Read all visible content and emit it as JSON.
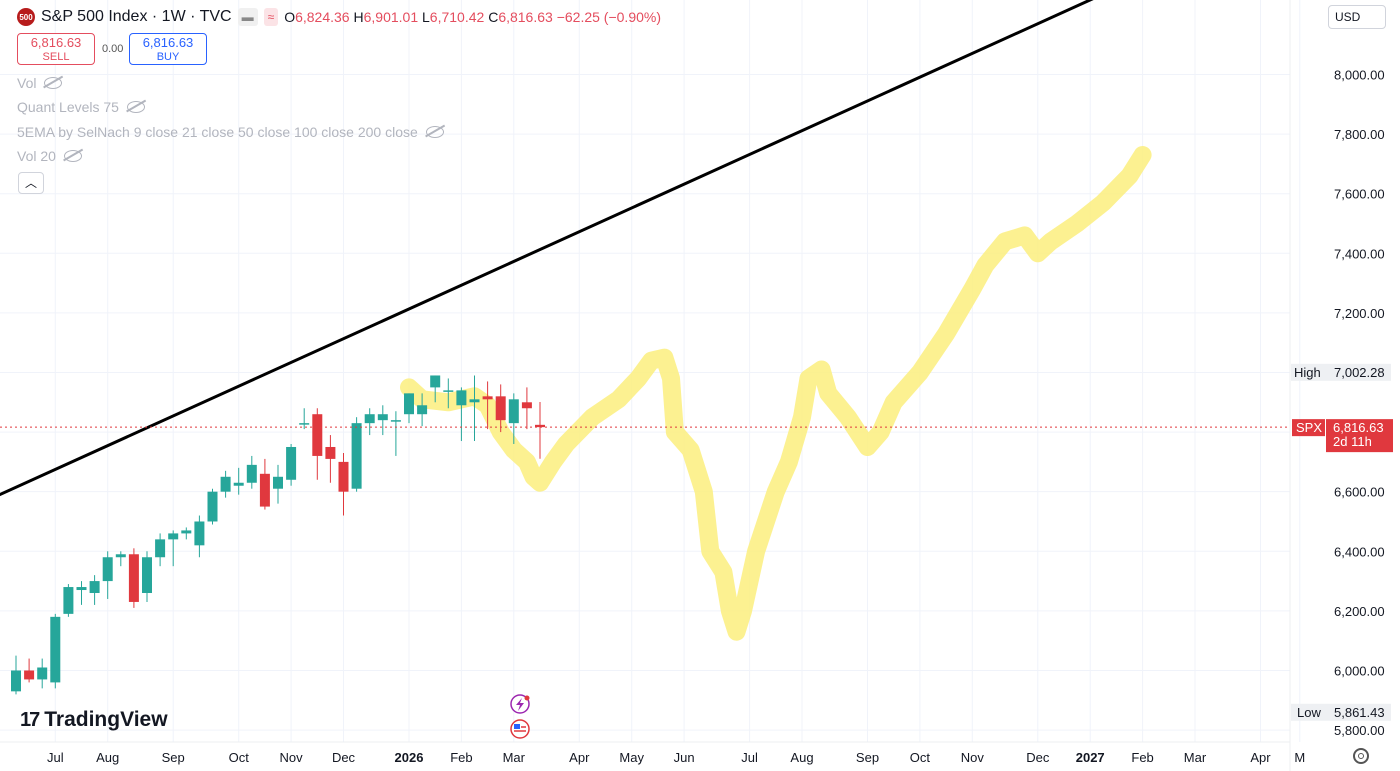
{
  "header": {
    "logo_text": "500",
    "title": "S&P 500 Index · 1W · TVC",
    "ohlc": {
      "o_label": "O",
      "o": "6,824.36",
      "h_label": "H",
      "h": "6,901.01",
      "l_label": "L",
      "l": "6,710.42",
      "c_label": "C",
      "c": "6,816.63",
      "change": "−62.25 (−0.90%)"
    }
  },
  "trade": {
    "sell_price": "6,816.63",
    "sell_label": "SELL",
    "spread": "0.00",
    "buy_price": "6,816.63",
    "buy_label": "BUY"
  },
  "indicators": [
    "Vol",
    "Quant Levels 75",
    "5EMA by SelNach 9 close 21 close 50 close 100 close 200 close",
    "Vol 20"
  ],
  "currency": "USD",
  "brand": "TradingView",
  "colors": {
    "up": "#26a69a",
    "down": "#e0383e",
    "trend_line": "#000000",
    "highlight": "#fbee7e",
    "price_label": "#e0383e"
  },
  "chart_data": {
    "type": "candlestick",
    "interval": "1W",
    "y_axis": {
      "range": [
        5760,
        8250
      ],
      "ticks": [
        5800,
        6000,
        6200,
        6400,
        6600,
        6800,
        7000,
        7200,
        7400,
        7600,
        7800,
        8000
      ],
      "tick_labels": [
        "5,800.00",
        "6,000.00",
        "6,200.00",
        "6,400.00",
        "6,600.00",
        "6,800.00",
        "7,000.00",
        "7,200.00",
        "7,400.00",
        "7,600.00",
        "7,800.00",
        "8,000.00"
      ],
      "position": "right"
    },
    "x_axis": {
      "labels": [
        "Jun",
        "Jul",
        "Aug",
        "Sep",
        "Oct",
        "Nov",
        "Dec",
        "2026",
        "Feb",
        "Mar",
        "Apr",
        "May",
        "Jun",
        "Jul",
        "Aug",
        "Sep",
        "Oct",
        "Nov",
        "Dec",
        "2027",
        "Feb",
        "Mar",
        "Apr",
        "M"
      ],
      "label_weeks": [
        -2,
        3,
        7,
        12,
        17,
        21,
        25,
        30,
        34,
        38,
        43,
        47,
        51,
        56,
        60,
        65,
        69,
        73,
        78,
        82,
        86,
        90,
        95,
        98
      ]
    },
    "candles": [
      {
        "o": 5930,
        "h": 6050,
        "l": 5920,
        "c": 6000
      },
      {
        "o": 6000,
        "h": 6040,
        "l": 5960,
        "c": 5970
      },
      {
        "o": 5970,
        "h": 6040,
        "l": 5940,
        "c": 6010
      },
      {
        "o": 5960,
        "h": 6190,
        "l": 5940,
        "c": 6180
      },
      {
        "o": 6190,
        "h": 6290,
        "l": 6180,
        "c": 6280
      },
      {
        "o": 6270,
        "h": 6300,
        "l": 6220,
        "c": 6280
      },
      {
        "o": 6260,
        "h": 6320,
        "l": 6220,
        "c": 6300
      },
      {
        "o": 6300,
        "h": 6400,
        "l": 6240,
        "c": 6380
      },
      {
        "o": 6380,
        "h": 6400,
        "l": 6350,
        "c": 6390
      },
      {
        "o": 6390,
        "h": 6410,
        "l": 6210,
        "c": 6230
      },
      {
        "o": 6260,
        "h": 6400,
        "l": 6230,
        "c": 6380
      },
      {
        "o": 6380,
        "h": 6460,
        "l": 6350,
        "c": 6440
      },
      {
        "o": 6440,
        "h": 6470,
        "l": 6350,
        "c": 6460
      },
      {
        "o": 6460,
        "h": 6480,
        "l": 6440,
        "c": 6470
      },
      {
        "o": 6420,
        "h": 6520,
        "l": 6380,
        "c": 6500
      },
      {
        "o": 6500,
        "h": 6610,
        "l": 6490,
        "c": 6600
      },
      {
        "o": 6600,
        "h": 6670,
        "l": 6580,
        "c": 6650
      },
      {
        "o": 6620,
        "h": 6680,
        "l": 6590,
        "c": 6630
      },
      {
        "o": 6630,
        "h": 6720,
        "l": 6610,
        "c": 6690
      },
      {
        "o": 6660,
        "h": 6710,
        "l": 6540,
        "c": 6550
      },
      {
        "o": 6610,
        "h": 6690,
        "l": 6560,
        "c": 6650
      },
      {
        "o": 6640,
        "h": 6760,
        "l": 6620,
        "c": 6750
      },
      {
        "o": 6830,
        "h": 6880,
        "l": 6810,
        "c": 6830
      },
      {
        "o": 6860,
        "h": 6880,
        "l": 6640,
        "c": 6720
      },
      {
        "o": 6750,
        "h": 6790,
        "l": 6630,
        "c": 6710
      },
      {
        "o": 6700,
        "h": 6730,
        "l": 6520,
        "c": 6600
      },
      {
        "o": 6610,
        "h": 6850,
        "l": 6600,
        "c": 6830
      },
      {
        "o": 6830,
        "h": 6880,
        "l": 6790,
        "c": 6860
      },
      {
        "o": 6840,
        "h": 6890,
        "l": 6790,
        "c": 6860
      },
      {
        "o": 6840,
        "h": 6870,
        "l": 6720,
        "c": 6840
      },
      {
        "o": 6860,
        "h": 6930,
        "l": 6830,
        "c": 6930
      },
      {
        "o": 6860,
        "h": 6930,
        "l": 6820,
        "c": 6890
      },
      {
        "o": 6950,
        "h": 6990,
        "l": 6900,
        "c": 6990
      },
      {
        "o": 6940,
        "h": 6980,
        "l": 6880,
        "c": 6940
      },
      {
        "o": 6890,
        "h": 6950,
        "l": 6770,
        "c": 6940
      },
      {
        "o": 6900,
        "h": 6990,
        "l": 6770,
        "c": 6910
      },
      {
        "o": 6920,
        "h": 6970,
        "l": 6810,
        "c": 6910
      },
      {
        "o": 6920,
        "h": 6960,
        "l": 6800,
        "c": 6840
      },
      {
        "o": 6830,
        "h": 6930,
        "l": 6760,
        "c": 6910
      },
      {
        "o": 6900,
        "h": 6950,
        "l": 6810,
        "c": 6880
      },
      {
        "o": 6824.36,
        "h": 6901.01,
        "l": 6710.42,
        "c": 6816.63
      }
    ],
    "trend_line": {
      "from": {
        "week": -2,
        "price": 6575
      },
      "to": {
        "week": 86,
        "price": 8330
      }
    },
    "projection_path": [
      {
        "week": 30,
        "price": 6950
      },
      {
        "week": 31,
        "price": 6910
      },
      {
        "week": 33,
        "price": 6900
      },
      {
        "week": 35,
        "price": 6920
      },
      {
        "week": 36,
        "price": 6890
      },
      {
        "week": 37,
        "price": 6800
      },
      {
        "week": 38,
        "price": 6740
      },
      {
        "week": 39,
        "price": 6700
      },
      {
        "week": 39.5,
        "price": 6650
      },
      {
        "week": 40,
        "price": 6630
      },
      {
        "week": 41,
        "price": 6700
      },
      {
        "week": 42,
        "price": 6760
      },
      {
        "week": 44,
        "price": 6850
      },
      {
        "week": 46,
        "price": 6910
      },
      {
        "week": 47.5,
        "price": 6980
      },
      {
        "week": 48.5,
        "price": 7040
      },
      {
        "week": 49.5,
        "price": 7050
      },
      {
        "week": 50,
        "price": 6980
      },
      {
        "week": 50.3,
        "price": 6800
      },
      {
        "week": 51.5,
        "price": 6740
      },
      {
        "week": 52.5,
        "price": 6600
      },
      {
        "week": 53,
        "price": 6400
      },
      {
        "week": 54,
        "price": 6330
      },
      {
        "week": 54.5,
        "price": 6200
      },
      {
        "week": 55,
        "price": 6130
      },
      {
        "week": 55.5,
        "price": 6200
      },
      {
        "week": 56.5,
        "price": 6400
      },
      {
        "week": 58,
        "price": 6600
      },
      {
        "week": 59,
        "price": 6700
      },
      {
        "week": 60,
        "price": 6850
      },
      {
        "week": 60.5,
        "price": 6980
      },
      {
        "week": 61.5,
        "price": 7010
      },
      {
        "week": 62,
        "price": 6930
      },
      {
        "week": 63.5,
        "price": 6850
      },
      {
        "week": 65,
        "price": 6750
      },
      {
        "week": 66,
        "price": 6800
      },
      {
        "week": 67,
        "price": 6900
      },
      {
        "week": 69,
        "price": 7000
      },
      {
        "week": 71,
        "price": 7130
      },
      {
        "week": 73,
        "price": 7280
      },
      {
        "week": 74,
        "price": 7360
      },
      {
        "week": 75.5,
        "price": 7440
      },
      {
        "week": 77,
        "price": 7460
      },
      {
        "week": 78,
        "price": 7400
      },
      {
        "week": 79,
        "price": 7440
      },
      {
        "week": 81,
        "price": 7500
      },
      {
        "week": 83,
        "price": 7570
      },
      {
        "week": 85,
        "price": 7660
      },
      {
        "week": 86,
        "price": 7730
      }
    ],
    "current_price": {
      "label": "SPX",
      "value": "6,816.63",
      "countdown": "2d 11h",
      "price": 6816.63
    },
    "high_marker": {
      "label": "High",
      "value": "7,002.28",
      "price": 7002.28
    },
    "low_marker": {
      "label": "Low",
      "value": "5,861.43",
      "price": 5861.43
    }
  }
}
